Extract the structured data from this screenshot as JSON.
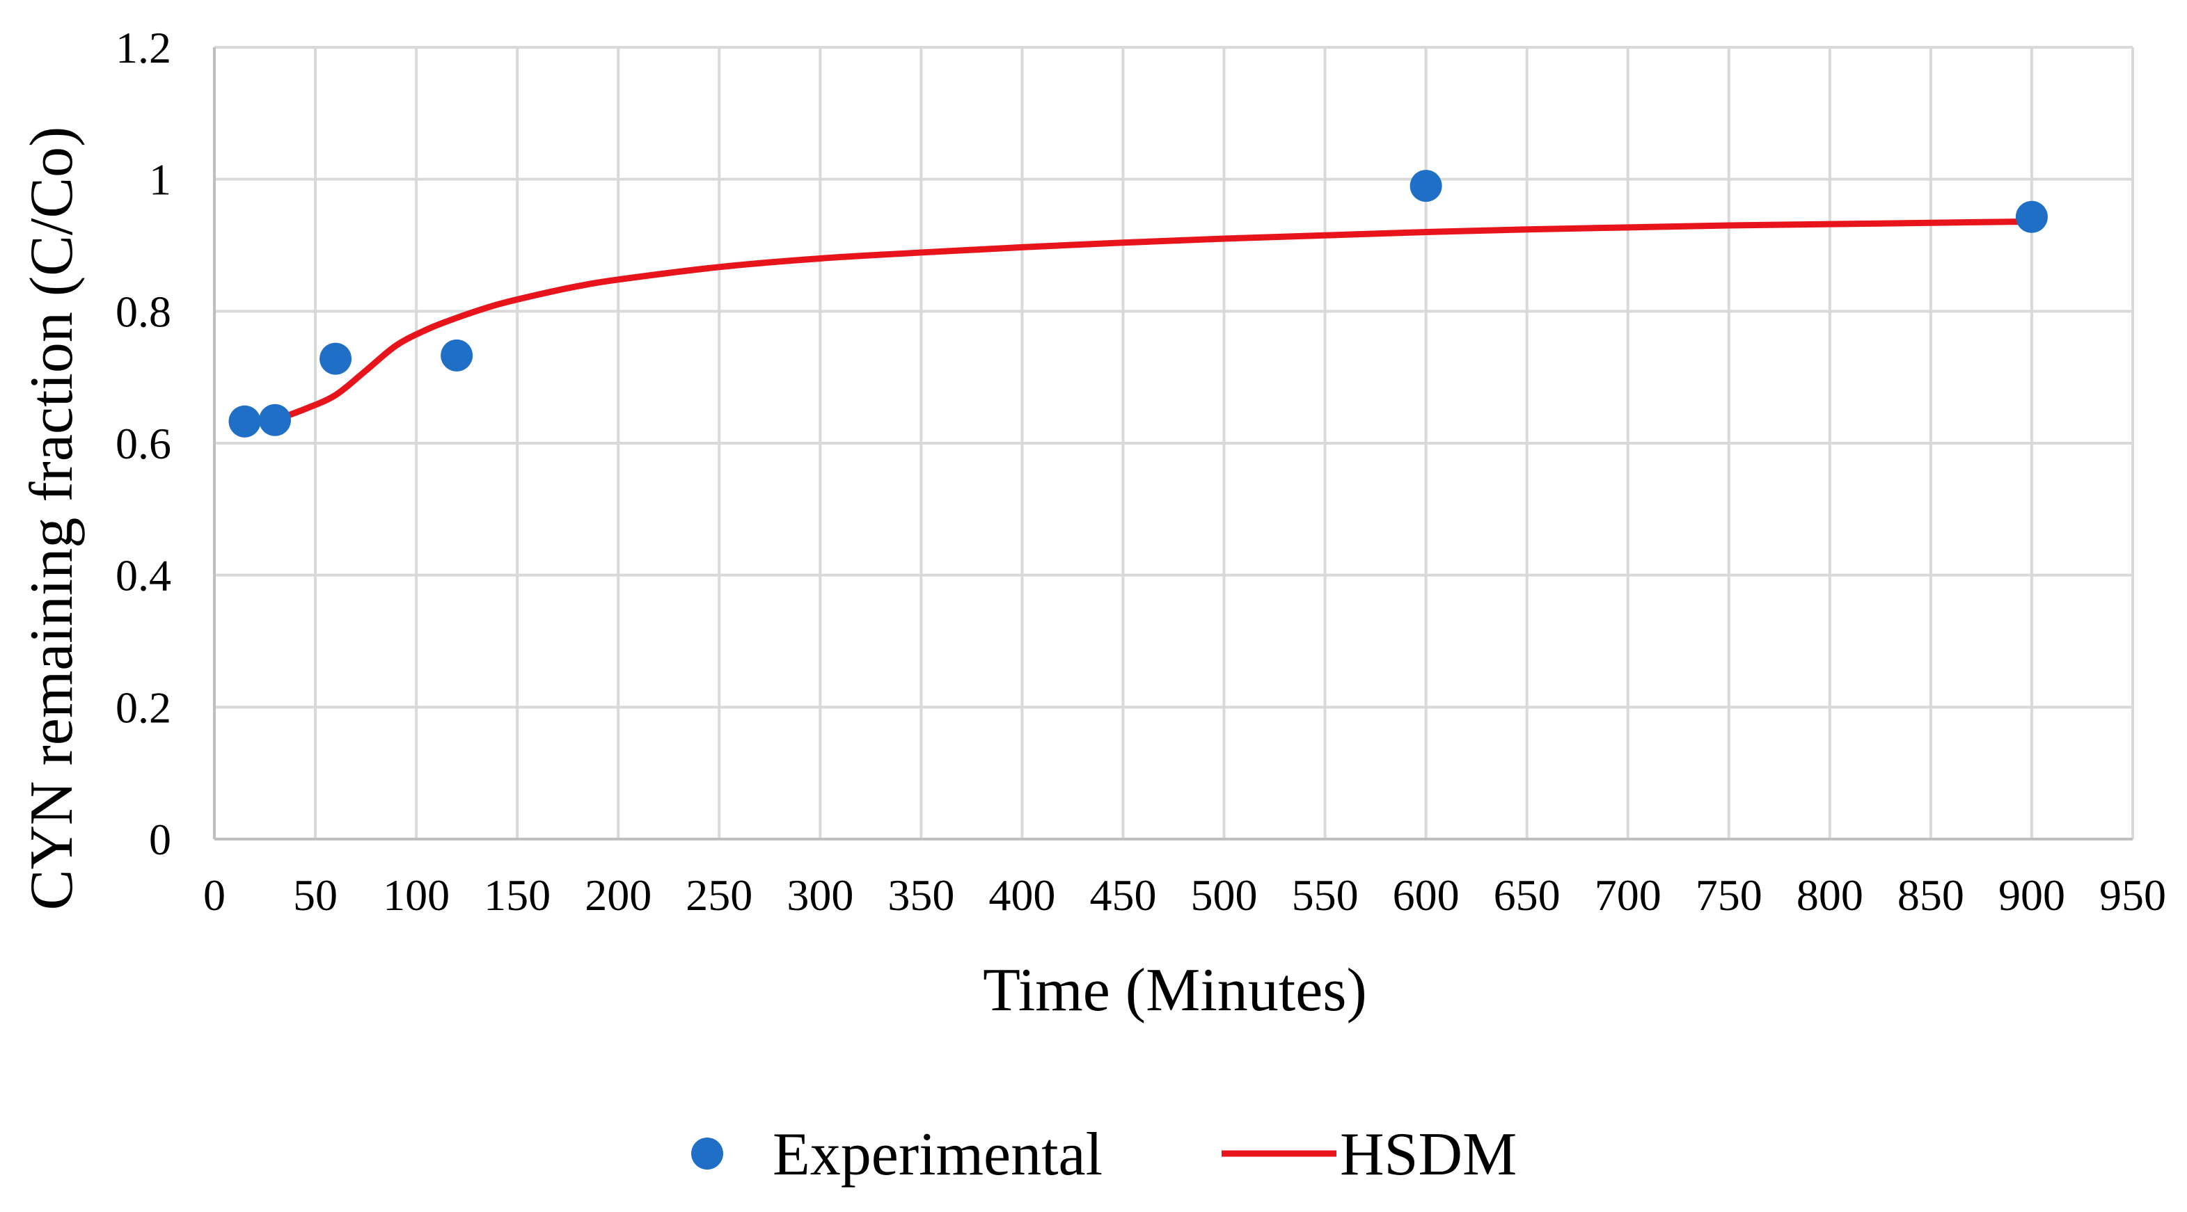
{
  "chart_data": {
    "type": "scatter",
    "title": "",
    "xlabel": "Time (Minutes)",
    "ylabel": "CYN remaining fraction (C/Co)",
    "xlim": [
      0,
      950
    ],
    "ylim": [
      0,
      1.2
    ],
    "x_ticks": [
      0,
      50,
      100,
      150,
      200,
      250,
      300,
      350,
      400,
      450,
      500,
      550,
      600,
      650,
      700,
      750,
      800,
      850,
      900,
      950
    ],
    "y_ticks": [
      {
        "value": 0,
        "label": "0"
      },
      {
        "value": 0.2,
        "label": "0.2"
      },
      {
        "value": 0.4,
        "label": "0.4"
      },
      {
        "value": 0.6,
        "label": "0.6"
      },
      {
        "value": 0.8,
        "label": "0.8"
      },
      {
        "value": 1.0,
        "label": "1"
      },
      {
        "value": 1.2,
        "label": "1.2"
      }
    ],
    "grid": true,
    "legend_position": "bottom",
    "series": [
      {
        "name": "Experimental",
        "kind": "scatter",
        "color": "#1f6fc6",
        "x": [
          15,
          30,
          60,
          120,
          600,
          900
        ],
        "y": [
          0.633,
          0.635,
          0.728,
          0.733,
          0.99,
          0.943
        ]
      },
      {
        "name": "HSDM",
        "kind": "line",
        "color": "#e8141b",
        "x": [
          30,
          45,
          60,
          75,
          90,
          105,
          120,
          140,
          160,
          180,
          200,
          250,
          300,
          350,
          400,
          450,
          500,
          550,
          600,
          650,
          700,
          750,
          800,
          850,
          900
        ],
        "y": [
          0.635,
          0.652,
          0.673,
          0.71,
          0.748,
          0.772,
          0.79,
          0.81,
          0.825,
          0.838,
          0.848,
          0.867,
          0.88,
          0.889,
          0.897,
          0.904,
          0.91,
          0.915,
          0.92,
          0.924,
          0.927,
          0.93,
          0.932,
          0.934,
          0.936
        ]
      }
    ]
  }
}
